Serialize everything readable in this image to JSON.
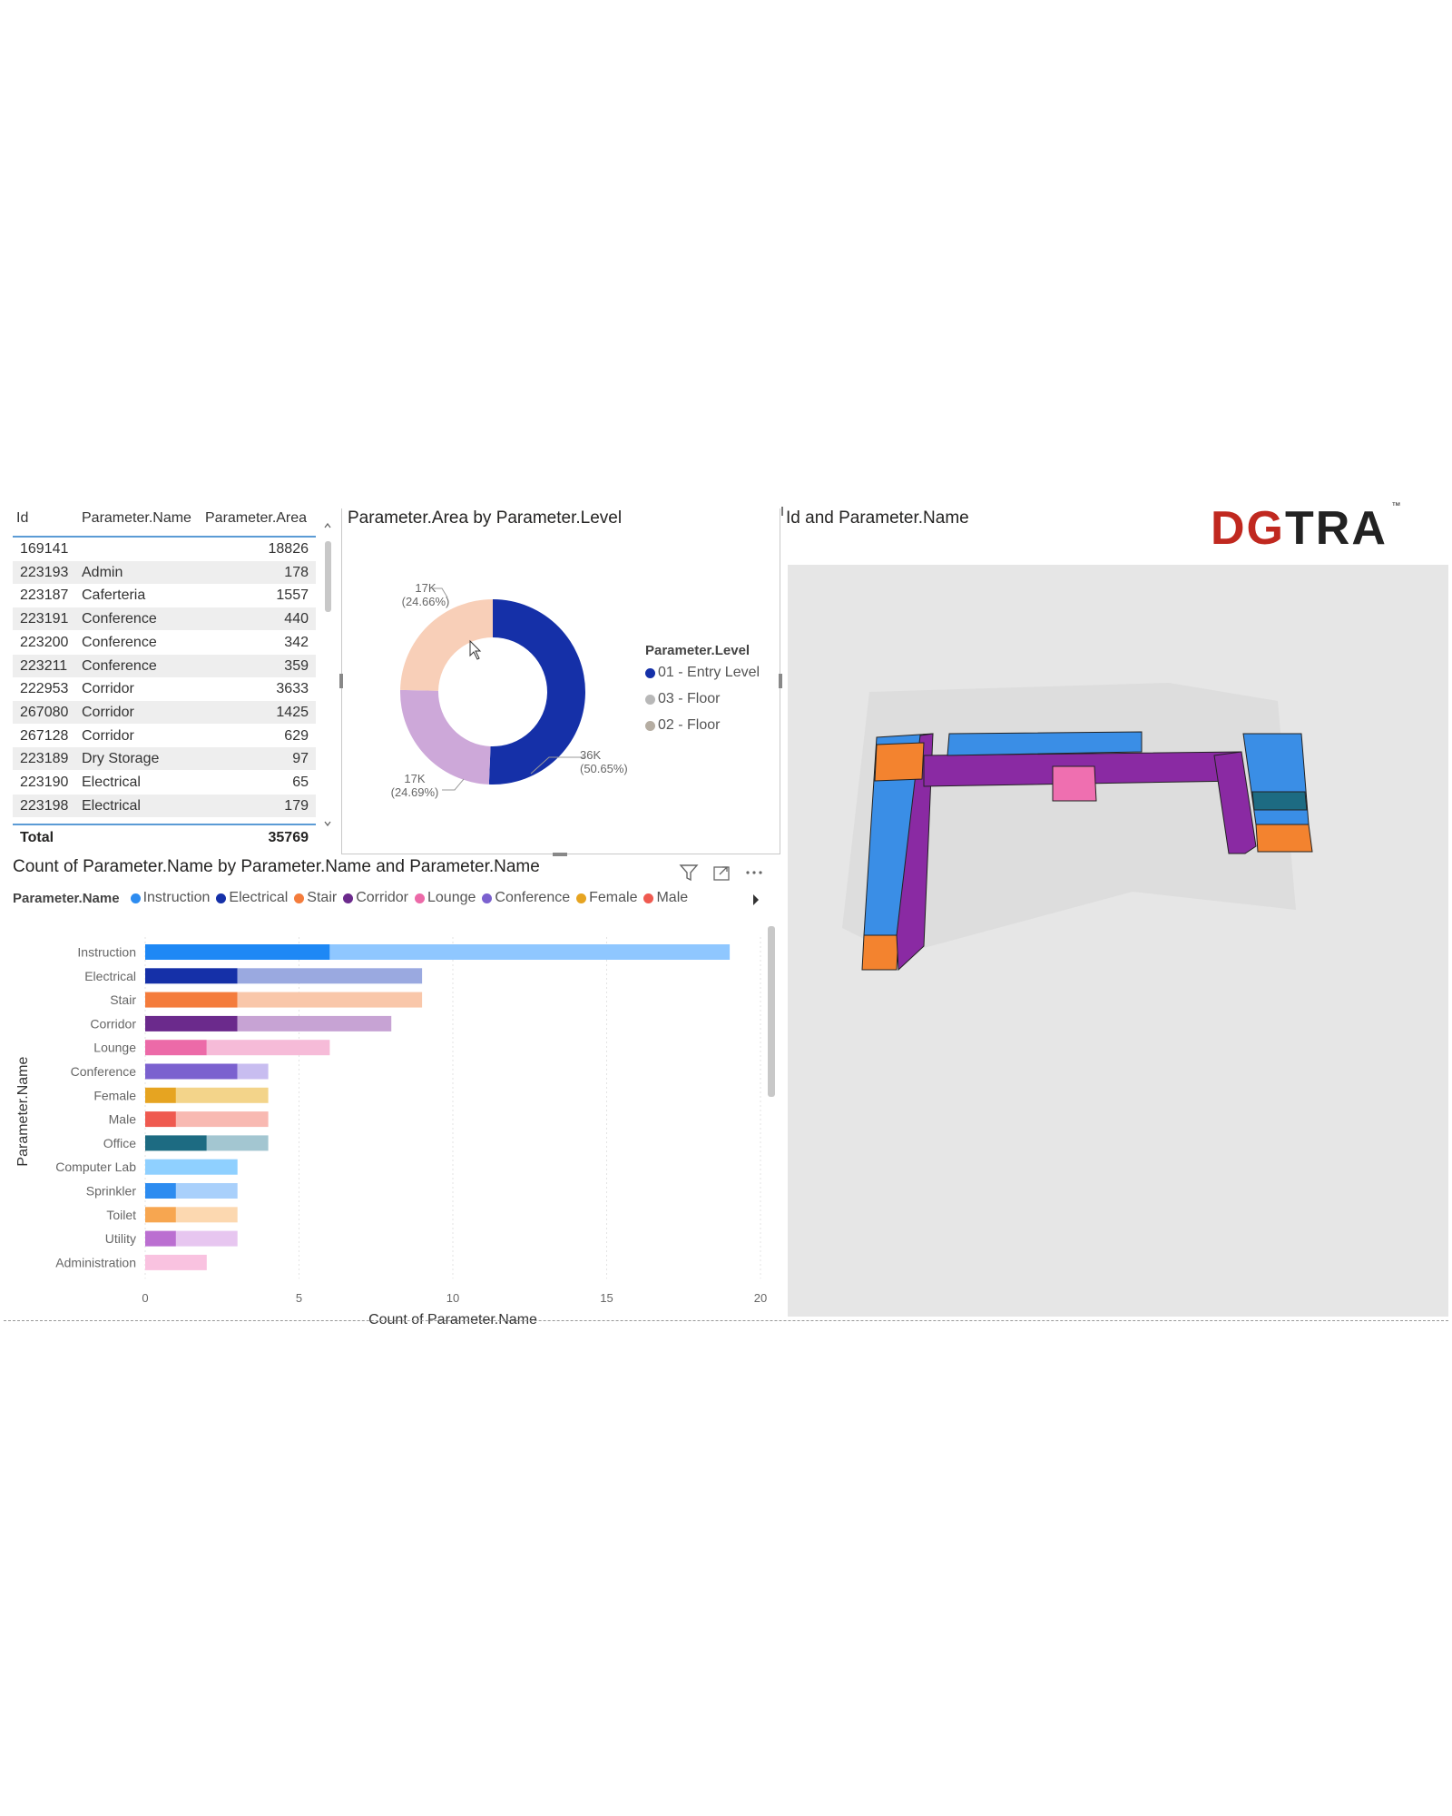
{
  "brand": {
    "logo": "DGTRA",
    "tm": "™",
    "colors": {
      "dg": "#c0281f",
      "tra": "#222222"
    }
  },
  "table": {
    "headers": [
      "Id",
      "Parameter.Name",
      "Parameter.Area"
    ],
    "rows": [
      {
        "id": "169141",
        "name": "",
        "area": "18826"
      },
      {
        "id": "223193",
        "name": "Admin",
        "area": "178"
      },
      {
        "id": "223187",
        "name": "Caferteria",
        "area": "1557"
      },
      {
        "id": "223191",
        "name": "Conference",
        "area": "440"
      },
      {
        "id": "223200",
        "name": "Conference",
        "area": "342"
      },
      {
        "id": "223211",
        "name": "Conference",
        "area": "359"
      },
      {
        "id": "222953",
        "name": "Corridor",
        "area": "3633"
      },
      {
        "id": "267080",
        "name": "Corridor",
        "area": "1425"
      },
      {
        "id": "267128",
        "name": "Corridor",
        "area": "629"
      },
      {
        "id": "223189",
        "name": "Dry Storage",
        "area": "97"
      },
      {
        "id": "223190",
        "name": "Electrical",
        "area": "65"
      },
      {
        "id": "223198",
        "name": "Electrical",
        "area": "179"
      }
    ],
    "total_label": "Total",
    "total_value": "35769"
  },
  "donut": {
    "title": "Parameter.Area by Parameter.Level",
    "legend_title": "Parameter.Level",
    "legend": [
      {
        "label": "01 - Entry Level",
        "color": "#1530a8"
      },
      {
        "label": "03 - Floor",
        "color": "#b8b8b8"
      },
      {
        "label": "02 - Floor",
        "color": "#b5ada2"
      }
    ],
    "labels": [
      {
        "value": "36K",
        "pct": "(50.65%)"
      },
      {
        "value": "17K",
        "pct": "(24.69%)"
      },
      {
        "value": "17K",
        "pct": "(24.66%)"
      }
    ]
  },
  "viewer": {
    "title": "Id and Parameter.Name"
  },
  "bar_chart": {
    "title": "Count of Parameter.Name by Parameter.Name and Parameter.Name",
    "legend_title": "Parameter.Name",
    "legend": [
      {
        "label": "Instruction",
        "color": "#2d8cf0"
      },
      {
        "label": "Electrical",
        "color": "#1530a8"
      },
      {
        "label": "Stair",
        "color": "#f47c3c"
      },
      {
        "label": "Corridor",
        "color": "#6b2a8c"
      },
      {
        "label": "Lounge",
        "color": "#ec6aa8"
      },
      {
        "label": "Conference",
        "color": "#7b61cf"
      },
      {
        "label": "Female",
        "color": "#e6a421"
      },
      {
        "label": "Male",
        "color": "#ef5a50"
      }
    ],
    "icons": [
      "filter-icon",
      "focus-mode-icon",
      "more-options-icon"
    ]
  },
  "chart_data": {
    "type": "bar",
    "orientation": "horizontal",
    "stacked": true,
    "title": "Count of Parameter.Name by Parameter.Name and Parameter.Name",
    "xlabel": "Count of Parameter.Name",
    "ylabel": "Parameter.Name",
    "xlim": [
      0,
      20
    ],
    "xticks": [
      "0",
      "5",
      "10",
      "15",
      "20"
    ],
    "categories": [
      "Instruction",
      "Electrical",
      "Stair",
      "Corridor",
      "Lounge",
      "Conference",
      "Female",
      "Male",
      "Office",
      "Computer Lab",
      "Sprinkler",
      "Toilet",
      "Utility",
      "Administration"
    ],
    "series": [
      {
        "values": [
          6,
          3,
          3,
          3,
          2,
          3,
          1,
          1,
          2,
          0,
          1,
          1,
          1,
          0
        ]
      },
      {
        "values": [
          13,
          6,
          6,
          5,
          4,
          1,
          3,
          3,
          2,
          3,
          2,
          2,
          2,
          2
        ]
      }
    ],
    "colors": [
      [
        "#1e88f5",
        "#8fc7ff"
      ],
      [
        "#1530a8",
        "#9aa9e0"
      ],
      [
        "#f47c3c",
        "#f9c7aa"
      ],
      [
        "#6b2a8c",
        "#c7a3d4"
      ],
      [
        "#ec6aa8",
        "#f6bbd8"
      ],
      [
        "#7b61cf",
        "#c8bdf0"
      ],
      [
        "#e6a421",
        "#f3d48a"
      ],
      [
        "#ef5a50",
        "#f8b9b2"
      ],
      [
        "#1d6b82",
        "#a3c6d1"
      ],
      [
        "#8fd0ff",
        "#8fd0ff"
      ],
      [
        "#2d8cf0",
        "#a9d0fb"
      ],
      [
        "#f7a650",
        "#fcd8b0"
      ],
      [
        "#bb6fd1",
        "#e7c6f0"
      ],
      [
        "#f9c2e0",
        "#f9c2e0"
      ]
    ],
    "grid": true,
    "legend": "top"
  }
}
